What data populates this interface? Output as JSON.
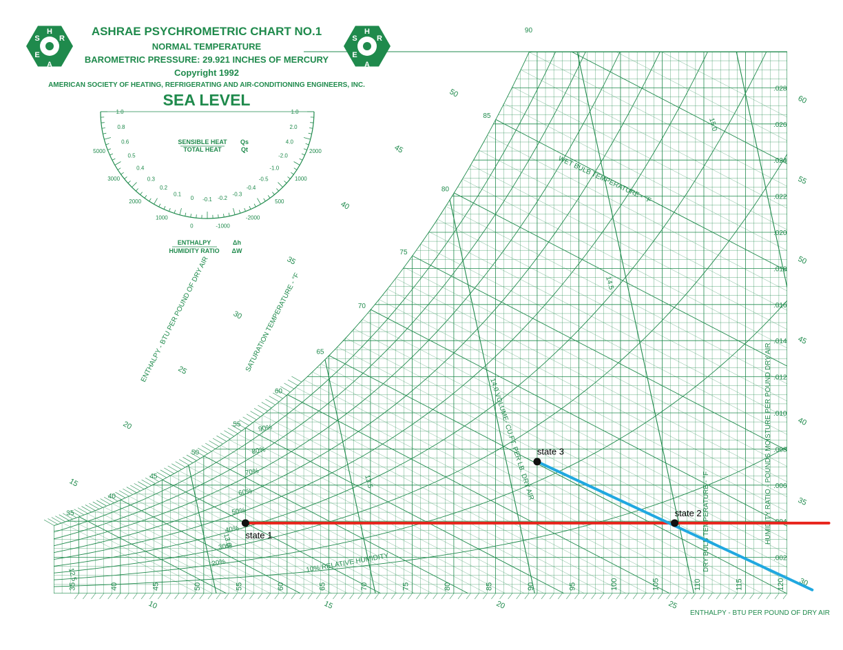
{
  "header": {
    "title": "ASHRAE PSYCHROMETRIC CHART NO.1",
    "line2": "NORMAL TEMPERATURE",
    "line3": "BAROMETRIC PRESSURE: 29.921 INCHES OF MERCURY",
    "line4": "Copyright 1992",
    "line5": "AMERICAN SOCIETY OF HEATING, REFRIGERATING AND AIR-CONDITIONING ENGINEERS, INC.",
    "line6": "SEA LEVEL",
    "logo_letters": [
      "H",
      "R",
      "A",
      "E",
      "S"
    ]
  },
  "protractor": {
    "sensible_label": "SENSIBLE HEAT",
    "total_label": "TOTAL HEAT",
    "ratio_num": "Qs",
    "ratio_den": "Qt",
    "enthalpy_label": "ENTHALPY",
    "humidity_label": "HUMIDITY RATIO",
    "enth_num": "Δh",
    "enth_den": "ΔW",
    "inner_labels": [
      "1.0",
      "0.8",
      "0.6",
      "0.5",
      "0.4",
      "0.3",
      "0.2",
      "0.1",
      "0",
      "-0.1",
      "-0.2",
      "-0.3",
      "-0.4",
      "-0.5",
      "-1.0",
      "-2.0",
      "4.0",
      "2.0",
      "1.0"
    ],
    "outer_labels": [
      "5000",
      "3000",
      "2000",
      "1000",
      "0",
      "-1000",
      "-2000",
      "500",
      "1000",
      "2000"
    ]
  },
  "colors": {
    "grid": "#1f8a4c",
    "process_heating": "#e8241c",
    "process_cooling": "#20a8e0",
    "state_point": "#111111"
  },
  "chart_data": {
    "type": "scatter",
    "chart_kind": "psychrometric",
    "xlabel": "DRY BULB TEMPERATURE - °F",
    "ylabel": "HUMIDITY RATIO - POUNDS MOISTURE PER POUND DRY AIR",
    "enthalpy_label_bottom": "ENTHALPY - BTU PER POUND OF DRY AIR",
    "enthalpy_label_left": "ENTHALPY - BTU PER POUND OF DRY AIR",
    "wet_bulb_label": "WET BULB TEMPERATURE - °F",
    "saturation_label": "SATURATION TEMPERATURE - °F",
    "volume_label": "14.0 VOLUME- CU.FT. PER LB. DRY AIR",
    "rh_label": "10% RELATIVE HUMIDITY",
    "xlim": [
      32,
      120
    ],
    "ylim": [
      0,
      0.03
    ],
    "x_ticks": [
      35,
      40,
      45,
      50,
      55,
      60,
      65,
      70,
      75,
      80,
      85,
      90,
      95,
      100,
      105,
      110,
      115,
      120
    ],
    "y_ticks": [
      ".002",
      ".004",
      ".006",
      ".008",
      ".010",
      ".012",
      ".014",
      ".016",
      ".018",
      ".020",
      ".022",
      ".024",
      ".026",
      ".028"
    ],
    "rh_percent": [
      10,
      20,
      30,
      40,
      50,
      60,
      70,
      80,
      90
    ],
    "rh_labels": [
      "20%",
      "30%",
      "40%",
      "50%",
      "60%",
      "70%",
      "80%",
      "90%"
    ],
    "wet_bulb_values": [
      35,
      40,
      45,
      50,
      55,
      60,
      65,
      70,
      75,
      80,
      85,
      90
    ],
    "enthalpy_values": [
      10,
      15,
      20,
      25,
      30,
      35,
      40,
      45,
      50,
      55,
      60
    ],
    "volume_values": [
      "12.5",
      "13.0",
      "13.5",
      "14.0",
      "14.5",
      "15.0"
    ],
    "states": [
      {
        "name": "state 1",
        "db": 55,
        "w": 0.0039
      },
      {
        "name": "state 2",
        "db": 106.5,
        "w": 0.0039
      },
      {
        "name": "state 3",
        "db": 90,
        "w": 0.0073
      }
    ],
    "process_lines": [
      {
        "from": [
          55,
          0.0039
        ],
        "to": [
          125,
          0.0039
        ],
        "color": "#e8241c"
      },
      {
        "from": [
          90,
          0.0073
        ],
        "to": [
          123,
          0.0002
        ],
        "color": "#20a8e0"
      }
    ]
  }
}
